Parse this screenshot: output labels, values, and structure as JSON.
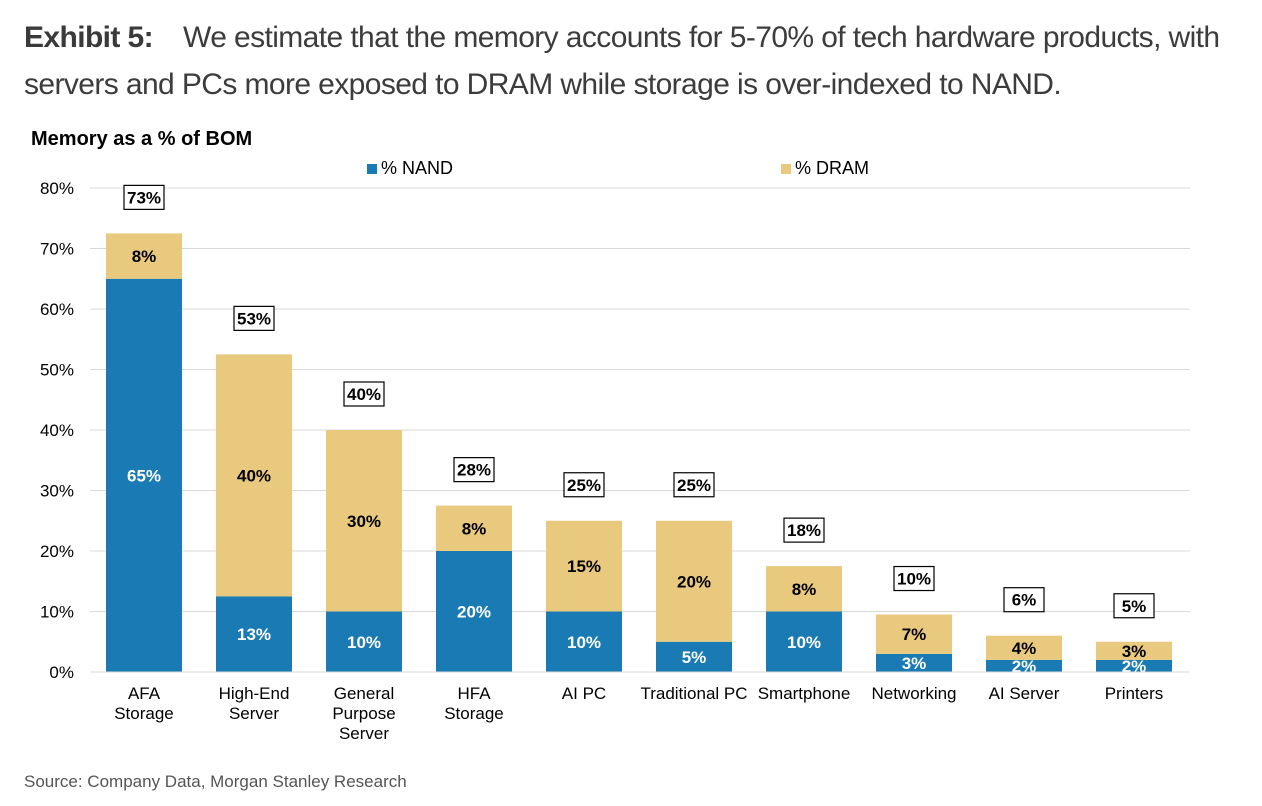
{
  "header": {
    "exhibit": "Exhibit 5:",
    "caption": "We estimate that the memory accounts for 5-70% of tech hardware products, with servers and PCs more exposed to DRAM while storage is over-indexed to NAND."
  },
  "source": "Source: Company Data, Morgan Stanley Research",
  "colors": {
    "nand": "#1a7ab3",
    "dram": "#e8c97e",
    "grid": "#d9d9d9"
  },
  "chart_data": {
    "type": "bar",
    "stacked": true,
    "title": "Memory as a % of BOM",
    "xlabel": "",
    "ylabel": "",
    "ylim": [
      0,
      80
    ],
    "yticks": [
      0,
      10,
      20,
      30,
      40,
      50,
      60,
      70,
      80
    ],
    "ytick_labels": [
      "0%",
      "10%",
      "20%",
      "30%",
      "40%",
      "50%",
      "60%",
      "70%",
      "80%"
    ],
    "grid": true,
    "legend_position": "top",
    "categories": [
      [
        "AFA",
        "Storage"
      ],
      [
        "High-End",
        "Server"
      ],
      [
        "General",
        "Purpose",
        "Server"
      ],
      [
        "HFA",
        "Storage"
      ],
      [
        "AI PC"
      ],
      [
        "Traditional PC"
      ],
      [
        "Smartphone"
      ],
      [
        "Networking"
      ],
      [
        "AI Server"
      ],
      [
        "Printers"
      ]
    ],
    "series": [
      {
        "name": "% NAND",
        "values": [
          65,
          12.5,
          10,
          20,
          10,
          5,
          10,
          3,
          2,
          2
        ],
        "labels": [
          "65%",
          "13%",
          "10%",
          "20%",
          "10%",
          "5%",
          "10%",
          "3%",
          "2%",
          "2%"
        ]
      },
      {
        "name": "% DRAM",
        "values": [
          7.5,
          40,
          30,
          7.5,
          15,
          20,
          7.5,
          6.5,
          4,
          3
        ],
        "labels": [
          "8%",
          "40%",
          "30%",
          "8%",
          "15%",
          "20%",
          "8%",
          "7%",
          "4%",
          "3%"
        ]
      }
    ],
    "totals": [
      "73%",
      "53%",
      "40%",
      "28%",
      "25%",
      "25%",
      "18%",
      "10%",
      "6%",
      "5%"
    ]
  }
}
